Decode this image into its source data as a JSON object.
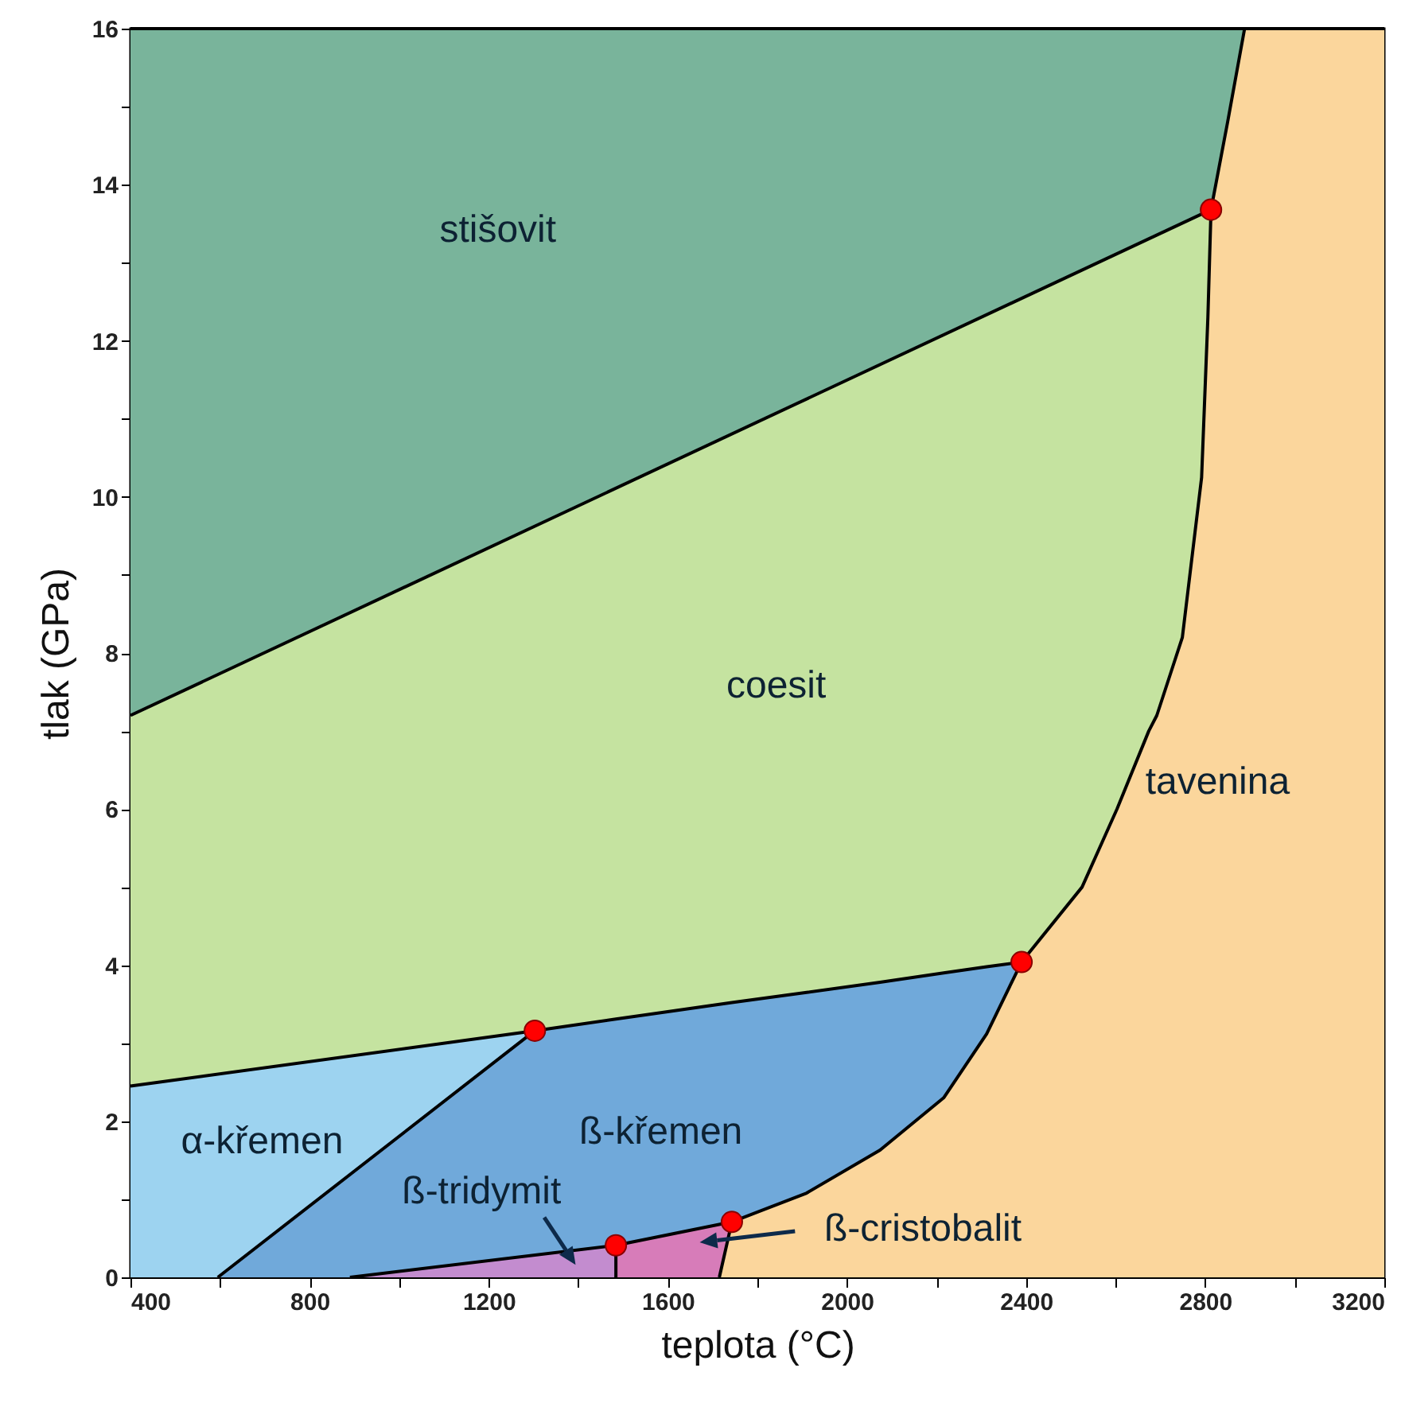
{
  "chart_data": {
    "type": "area",
    "xlabel": "teplota (°C)",
    "ylabel": "tlak (GPa)",
    "xlim": [
      400,
      3200
    ],
    "ylim": [
      0,
      16
    ],
    "xticks": [
      400,
      {
        "value": 600,
        "label": null
      },
      800,
      {
        "value": 1000,
        "label": null
      },
      1200,
      {
        "value": 1400,
        "label": null
      },
      1600,
      {
        "value": 1800,
        "label": null
      },
      2000,
      {
        "value": 2200,
        "label": null
      },
      2400,
      {
        "value": 2600,
        "label": null
      },
      2800,
      {
        "value": 3000,
        "label": null
      },
      3200
    ],
    "yticks": [
      0,
      {
        "value": 1,
        "label": null
      },
      2,
      {
        "value": 3,
        "label": null
      },
      4,
      {
        "value": 5,
        "label": null
      },
      6,
      {
        "value": 7,
        "label": null
      },
      8,
      {
        "value": 9,
        "label": null
      },
      10,
      {
        "value": 11,
        "label": null
      },
      12,
      {
        "value": 13,
        "label": null
      },
      14,
      {
        "value": 15,
        "label": null
      },
      16
    ],
    "grid": false,
    "line_style": "solid",
    "series": [
      {
        "color": "#79b49b",
        "x": [
          400,
          2888
        ],
        "values": [
          16,
          16
        ]
      },
      {
        "color": "#c5e3a0",
        "x": [
          400,
          2813
        ],
        "values": [
          7.2,
          13.68
        ]
      },
      {
        "color": "#9dd3f0",
        "x": [
          400,
          1303
        ],
        "values": [
          2.45,
          3.16
        ]
      },
      {
        "color": "#70a9da",
        "x": [
          595,
          1303,
          1484,
          1743,
          1910,
          2074,
          2216,
          2312,
          2390
        ],
        "values": [
          0,
          3.16,
          3.31,
          3.52,
          3.65,
          3.78,
          3.9,
          3.98,
          4.04
        ]
      },
      {
        "color": "#c38ccf",
        "x": [
          890,
          1484
        ],
        "values": [
          0,
          0.41
        ]
      },
      {
        "color": "#d77cb9",
        "x": [
          1484,
          1743
        ],
        "values": [
          0.41,
          0.71
        ]
      },
      {
        "color": "#fbd69c",
        "x": [
          1715,
          1743,
          1910,
          2074,
          2216,
          2312,
          2390,
          2525,
          2603,
          2674,
          2692,
          2749,
          2792,
          2806,
          2813,
          2850,
          2888,
          3200
        ],
        "values": [
          0,
          0.71,
          1.08,
          1.63,
          2.3,
          3.12,
          4.04,
          5,
          6,
          7,
          7.2,
          8.2,
          10.25,
          12.3,
          13.68,
          14.8,
          16,
          16
        ]
      },
      {
        "type": "line",
        "color": "#000000",
        "x": [
          1484,
          1484
        ],
        "values": [
          0,
          0.41
        ]
      },
      {
        "type": "scatter",
        "color": "#ff0000",
        "x": [
          1303,
          2390,
          2813,
          1484,
          1743
        ],
        "values": [
          3.16,
          4.04,
          13.68,
          0.41,
          0.71
        ]
      }
    ],
    "annotations": [
      "stišovit",
      "coesit",
      "tavenina",
      "α-křemen",
      "ß-křemen",
      "ß-tridymit",
      "ß-cristobalit"
    ]
  }
}
